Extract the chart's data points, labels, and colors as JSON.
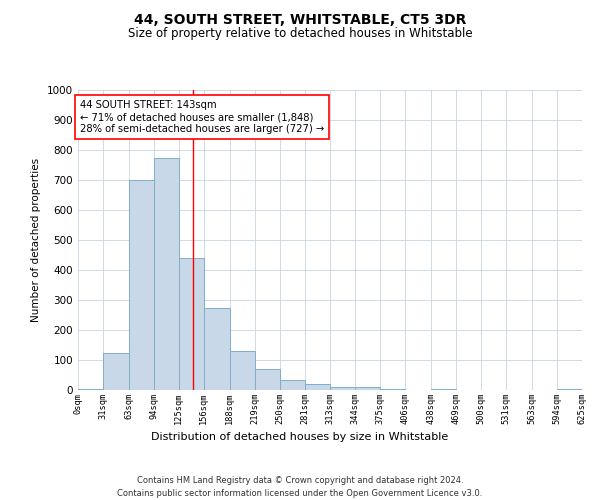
{
  "title1": "44, SOUTH STREET, WHITSTABLE, CT5 3DR",
  "title2": "Size of property relative to detached houses in Whitstable",
  "xlabel": "Distribution of detached houses by size in Whitstable",
  "ylabel": "Number of detached properties",
  "footer1": "Contains HM Land Registry data © Crown copyright and database right 2024.",
  "footer2": "Contains public sector information licensed under the Open Government Licence v3.0.",
  "annotation_line1": "44 SOUTH STREET: 143sqm",
  "annotation_line2": "← 71% of detached houses are smaller (1,848)",
  "annotation_line3": "28% of semi-detached houses are larger (727) →",
  "bar_color": "#c8d8e8",
  "bar_edge_color": "#7fafc8",
  "red_line_x": 143,
  "bins": [
    0,
    31,
    63,
    94,
    125,
    156,
    188,
    219,
    250,
    281,
    313,
    344,
    375,
    406,
    438,
    469,
    500,
    531,
    563,
    594,
    625
  ],
  "bin_labels": [
    "0sqm",
    "31sqm",
    "63sqm",
    "94sqm",
    "125sqm",
    "156sqm",
    "188sqm",
    "219sqm",
    "250sqm",
    "281sqm",
    "313sqm",
    "344sqm",
    "375sqm",
    "406sqm",
    "438sqm",
    "469sqm",
    "500sqm",
    "531sqm",
    "563sqm",
    "594sqm",
    "625sqm"
  ],
  "values": [
    5,
    125,
    700,
    775,
    440,
    275,
    130,
    70,
    35,
    20,
    10,
    10,
    5,
    0,
    5,
    0,
    0,
    0,
    0,
    5
  ],
  "ylim": [
    0,
    1000
  ],
  "yticks": [
    0,
    100,
    200,
    300,
    400,
    500,
    600,
    700,
    800,
    900,
    1000
  ],
  "bg_color": "#ffffff",
  "grid_color": "#c8d4e0"
}
